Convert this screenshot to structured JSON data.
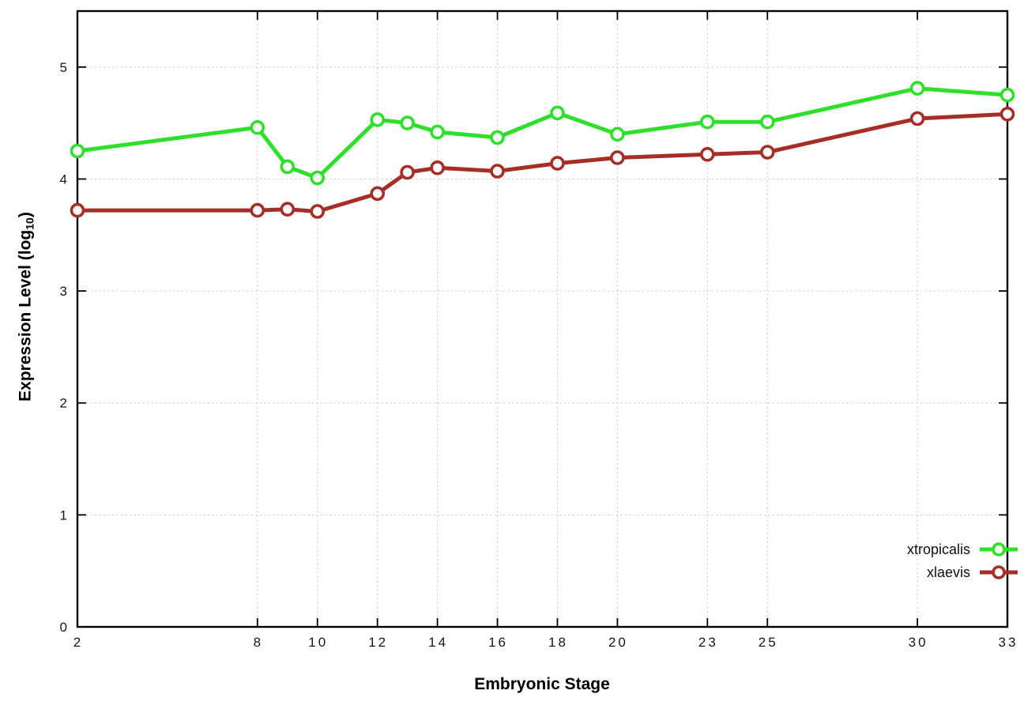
{
  "chart_data": {
    "type": "line",
    "title": "",
    "xlabel": "Embryonic Stage",
    "ylabel": "Expression Level (log10)",
    "ylabel_parts": {
      "pre": "Expression Level (log",
      "sub": "10",
      "post": ")"
    },
    "x": [
      2,
      8,
      9,
      10,
      12,
      13,
      14,
      16,
      18,
      20,
      23,
      25,
      30,
      33
    ],
    "series": [
      {
        "name": "xtropicalis",
        "color": "#2ee029",
        "values": [
          4.25,
          4.46,
          4.11,
          4.01,
          4.53,
          4.5,
          4.42,
          4.37,
          4.59,
          4.4,
          4.51,
          4.51,
          4.81,
          4.75
        ]
      },
      {
        "name": "xlaevis",
        "color": "#a52e27",
        "values": [
          3.72,
          3.72,
          3.73,
          3.71,
          3.87,
          4.06,
          4.1,
          4.07,
          4.14,
          4.19,
          4.22,
          4.24,
          4.54,
          4.58
        ]
      }
    ],
    "xticks": [
      2,
      8,
      10,
      12,
      14,
      16,
      18,
      20,
      23,
      25,
      30,
      33
    ],
    "yticks": [
      0,
      1,
      2,
      3,
      4,
      5
    ],
    "xlim": [
      2,
      33
    ],
    "ylim": [
      0,
      5.5
    ],
    "grid": true,
    "legend_position": "right-center",
    "marker": "open-circle",
    "background": "#ffffff"
  }
}
